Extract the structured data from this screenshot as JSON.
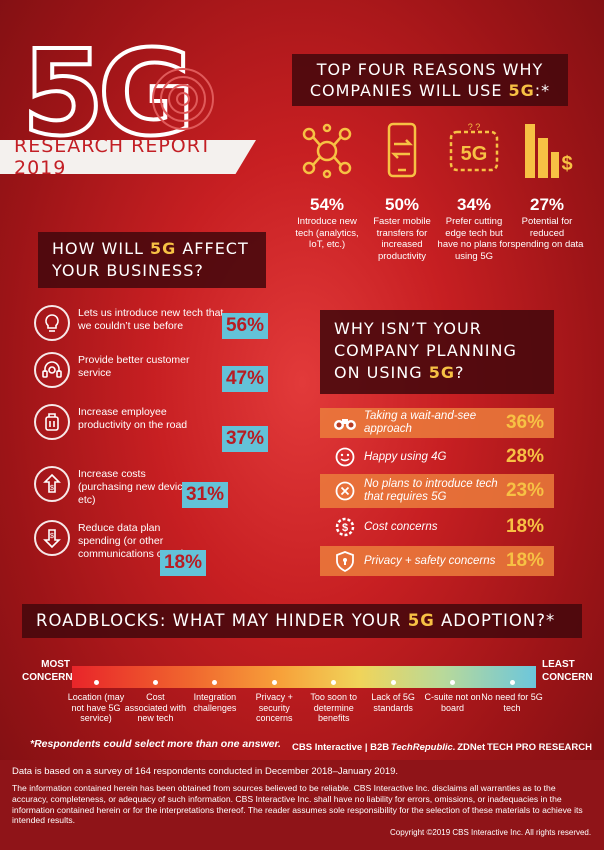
{
  "header": {
    "logo_text": "5G",
    "report_label": "RESEARCH REPORT 2019"
  },
  "reasons": {
    "title_pre": "TOP FOUR REASONS WHY",
    "title_line2": "COMPANIES WILL USE ",
    "title_hl": "5G",
    "title_post": ":*",
    "items": [
      {
        "icon": "network-icon",
        "pct": "54%",
        "label": "Introduce new tech (analytics, IoT, etc.)"
      },
      {
        "icon": "phone-transfer-icon",
        "pct": "50%",
        "label": "Faster mobile transfers for increased productivity"
      },
      {
        "icon": "5g-badge-icon",
        "pct": "34%",
        "label": "Prefer cutting edge tech but have no plans for using 5G"
      },
      {
        "icon": "dollar-bars-icon",
        "pct": "27%",
        "label": "Potential for reduced spending on data"
      }
    ]
  },
  "affect": {
    "title_pre": "HOW WILL ",
    "title_hl": "5G",
    "title_post": " AFFECT",
    "title_line2": "YOUR BUSINESS?",
    "items": [
      {
        "icon": "lightbulb-icon",
        "label": "Lets us introduce new tech that we couldn’t use before",
        "value": "56%"
      },
      {
        "icon": "headset-icon",
        "label": "Provide better customer service",
        "value": "47%"
      },
      {
        "icon": "luggage-icon",
        "label": "Increase employee productivity on the road",
        "value": "37%"
      },
      {
        "icon": "cost-up-icon",
        "label": "Increase costs (purchasing new devices, etc)",
        "value": "31%"
      },
      {
        "icon": "cost-down-icon",
        "label": "Reduce data plan spending (or other communications costs)",
        "value": "18%"
      }
    ]
  },
  "why_not": {
    "title_line1": "WHY ISN’T YOUR",
    "title_line2": "COMPANY PLANNING",
    "title_line3_pre": "ON USING ",
    "title_hl": "5G",
    "title_post": "?",
    "items": [
      {
        "icon": "binoculars-icon",
        "label": "Taking a wait-and-see approach",
        "value": "36%"
      },
      {
        "icon": "smiley-icon",
        "label": "Happy using 4G",
        "value": "28%"
      },
      {
        "icon": "x-circle-icon",
        "label": "No plans to introduce tech that requires 5G",
        "value": "23%"
      },
      {
        "icon": "dollar-gear-icon",
        "label": "Cost concerns",
        "value": "18%"
      },
      {
        "icon": "shield-icon",
        "label": "Privacy + safety concerns",
        "value": "18%"
      }
    ]
  },
  "roadblocks": {
    "title_pre": "ROADBLOCKS: WHAT MAY HINDER YOUR ",
    "title_hl": "5G",
    "title_post": " ADOPTION?*",
    "most": "MOST CONCERN",
    "least": "LEAST CONCERN",
    "items": [
      "Location (may not have 5G service)",
      "Cost associated with new tech",
      "Integration challenges",
      "Privacy + security concerns",
      "Too soon to determine benefits",
      "Lack of 5G standards",
      "C-suite not on board",
      "No need for 5G tech"
    ]
  },
  "note": "*Respondents could select more than one answer.",
  "brands": [
    "CBS Interactive | B2B",
    "TechRepublic.",
    "ZDNet",
    "TECH PRO RESEARCH"
  ],
  "footer": {
    "survey": "Data is based on a survey of 164 respondents conducted in December 2018–January 2019.",
    "disclaimer": "The information contained herein has been obtained from sources believed to be reliable. CBS Interactive Inc. disclaims all warranties as to the accuracy, completeness, or adequacy of such information. CBS Interactive Inc. shall have no liability for errors, omissions, or inadequacies in the information contained herein or for the interpretations thereof. The reader assumes sole responsibility for the selection of these materials to achieve its intended results.",
    "copyright": "Copyright ©2019 CBS Interactive Inc. All rights reserved."
  },
  "colors": {
    "accent": "#f7c144",
    "primary_red": "#c71f22",
    "blue_badge": "#63c2d8",
    "orange_row": "#eb7d3c"
  },
  "chart_data": [
    {
      "type": "bar",
      "title": "TOP FOUR REASONS WHY COMPANIES WILL USE 5G:*",
      "categories": [
        "Introduce new tech (analytics, IoT, etc.)",
        "Faster mobile transfers for increased productivity",
        "Prefer cutting edge tech but have no plans for using 5G",
        "Potential for reduced spending on data"
      ],
      "values": [
        54,
        50,
        34,
        27
      ]
    },
    {
      "type": "bar",
      "title": "HOW WILL 5G AFFECT YOUR BUSINESS?",
      "categories": [
        "Lets us introduce new tech that we couldn’t use before",
        "Provide better customer service",
        "Increase employee productivity on the road",
        "Increase costs (purchasing new devices, etc)",
        "Reduce data plan spending (or other communications costs)"
      ],
      "values": [
        56,
        47,
        37,
        31,
        18
      ]
    },
    {
      "type": "bar",
      "title": "WHY ISN’T YOUR COMPANY PLANNING ON USING 5G?",
      "categories": [
        "Taking a wait-and-see approach",
        "Happy using 4G",
        "No plans to introduce tech that requires 5G",
        "Cost concerns",
        "Privacy + safety concerns"
      ],
      "values": [
        36,
        28,
        23,
        18,
        18
      ]
    }
  ]
}
